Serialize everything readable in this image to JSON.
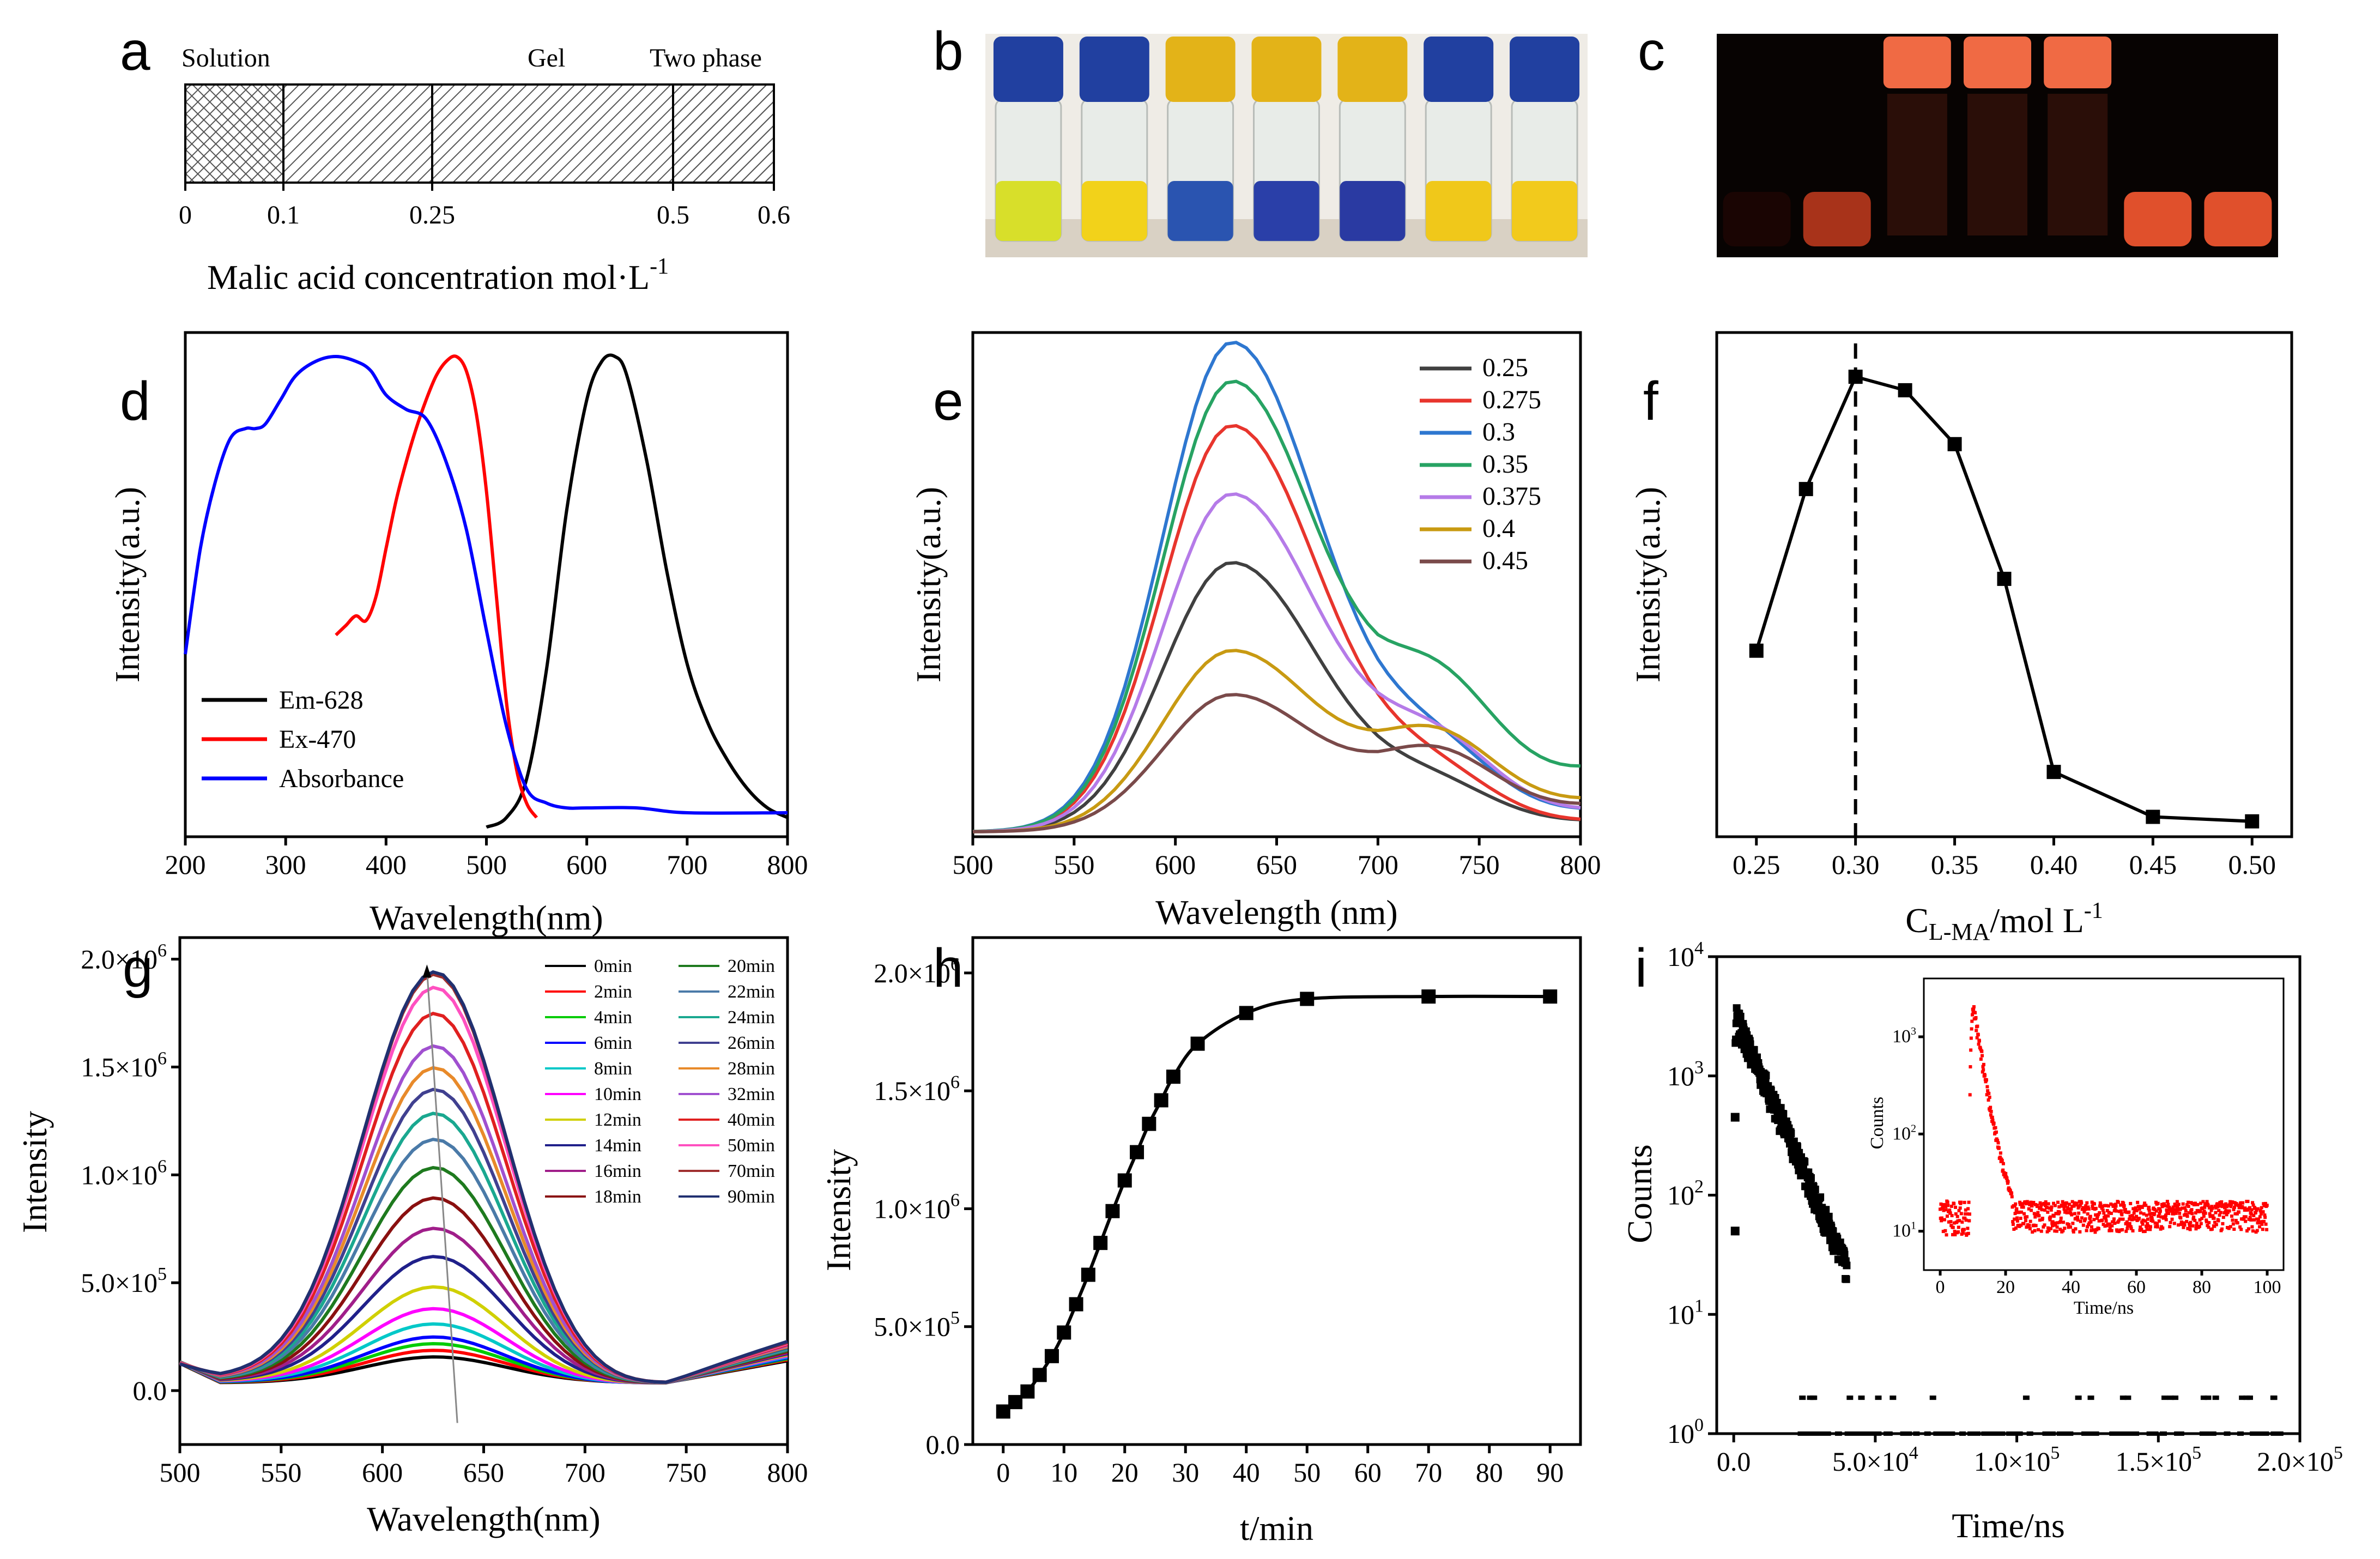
{
  "panel_labels": [
    "a",
    "b",
    "c",
    "d",
    "e",
    "f",
    "g",
    "h",
    "i"
  ],
  "panel_a": {
    "regions": [
      "Solution",
      "Gel",
      "Two phase"
    ],
    "ticks": [
      "0",
      "0.1",
      "0.25",
      "0.5",
      "0.6"
    ],
    "xlabel": "Malic acid concentration mol·L",
    "xlabel_sup": "-1"
  },
  "photo_b": {
    "vials": [
      {
        "cap": "#2140a0",
        "liquid": "#d8df2a"
      },
      {
        "cap": "#2140a0",
        "liquid": "#f2d21a"
      },
      {
        "cap": "#e3b318",
        "liquid": "#2a54b0"
      },
      {
        "cap": "#e3b318",
        "liquid": "#2a3fa8"
      },
      {
        "cap": "#e3b318",
        "liquid": "#2a3aa2"
      },
      {
        "cap": "#2140a0",
        "liquid": "#f0c81a"
      },
      {
        "cap": "#2140a0",
        "liquid": "#f2ca1c"
      }
    ]
  },
  "photo_c": {
    "glows": [
      "#1a0503",
      "#a8331a",
      "#f06a44",
      "#f06a44",
      "#f06a44",
      "#e0502c",
      "#e0502c"
    ]
  },
  "chart_data": [
    {
      "id": "d",
      "type": "line",
      "xlabel": "Wavelength(nm)",
      "ylabel": "Intensity(a.u.)",
      "xlim": [
        200,
        800
      ],
      "ylim": [
        0,
        1.05
      ],
      "xticks": [
        200,
        300,
        400,
        500,
        600,
        700,
        800
      ],
      "series": [
        {
          "name": "Em-628",
          "color": "#000000",
          "x": [
            500,
            520,
            540,
            560,
            580,
            600,
            615,
            628,
            640,
            660,
            680,
            700,
            720,
            740,
            760,
            780,
            800
          ],
          "y": [
            0.02,
            0.04,
            0.12,
            0.35,
            0.68,
            0.91,
            0.99,
            1.0,
            0.96,
            0.78,
            0.55,
            0.36,
            0.24,
            0.16,
            0.1,
            0.06,
            0.04
          ]
        },
        {
          "name": "Ex-470",
          "color": "#ff0000",
          "x": [
            350,
            360,
            370,
            380,
            390,
            400,
            410,
            420,
            430,
            440,
            450,
            460,
            470,
            480,
            490,
            500,
            510,
            520,
            530,
            540,
            550
          ],
          "y": [
            0.42,
            0.44,
            0.46,
            0.45,
            0.5,
            0.6,
            0.7,
            0.78,
            0.85,
            0.91,
            0.96,
            0.99,
            1.0,
            0.97,
            0.88,
            0.72,
            0.5,
            0.28,
            0.14,
            0.07,
            0.04
          ]
        },
        {
          "name": "Absorbance",
          "color": "#0000ff",
          "x": [
            200,
            215,
            230,
            245,
            260,
            270,
            280,
            295,
            310,
            330,
            350,
            370,
            385,
            400,
            420,
            440,
            460,
            480,
            500,
            520,
            540,
            560,
            580,
            600,
            650,
            700,
            800
          ],
          "y": [
            0.38,
            0.6,
            0.74,
            0.83,
            0.85,
            0.85,
            0.86,
            0.91,
            0.96,
            0.99,
            1.0,
            0.99,
            0.97,
            0.92,
            0.89,
            0.87,
            0.78,
            0.64,
            0.43,
            0.23,
            0.1,
            0.07,
            0.06,
            0.06,
            0.06,
            0.05,
            0.05
          ]
        }
      ]
    },
    {
      "id": "e",
      "type": "line",
      "xlabel": "Wavelength (nm)",
      "ylabel": "Intensity(a.u.)",
      "xlim": [
        500,
        800
      ],
      "ylim": [
        0,
        1.03
      ],
      "xticks": [
        500,
        550,
        600,
        650,
        700,
        750,
        800
      ],
      "series": [
        {
          "name": "0.25",
          "color": "#404040",
          "peak": 0.55,
          "shoulder": 0.08,
          "tail": 0.02
        },
        {
          "name": "0.275",
          "color": "#e8352d",
          "peak": 0.83,
          "shoulder": 0.1,
          "tail": 0.02
        },
        {
          "name": "0.3",
          "color": "#2e77d0",
          "peak": 1.0,
          "shoulder": 0.14,
          "tail": 0.04
        },
        {
          "name": "0.35",
          "color": "#27a363",
          "peak": 0.92,
          "shoulder": 0.25,
          "tail": 0.12
        },
        {
          "name": "0.375",
          "color": "#b57be8",
          "peak": 0.69,
          "shoulder": 0.16,
          "tail": 0.04
        },
        {
          "name": "0.4",
          "color": "#c89a12",
          "peak": 0.37,
          "shoulder": 0.17,
          "tail": 0.06
        },
        {
          "name": "0.45",
          "color": "#7a4a4a",
          "peak": 0.28,
          "shoulder": 0.14,
          "tail": 0.05
        }
      ]
    },
    {
      "id": "f",
      "type": "line",
      "xlabel": "C",
      "xlabel_sub": "L-MA",
      "xlabel_rest": "/mol L",
      "xlabel_sup": "-1",
      "ylabel": "Intensity(a.u.)",
      "xlim": [
        0.23,
        0.52
      ],
      "ylim": [
        0,
        1.05
      ],
      "xticks": [
        "0.25",
        "0.30",
        "0.35",
        "0.40",
        "0.45",
        "0.50"
      ],
      "x": [
        0.25,
        0.275,
        0.3,
        0.325,
        0.35,
        0.375,
        0.4,
        0.45,
        0.5
      ],
      "y": [
        0.39,
        0.75,
        1.0,
        0.97,
        0.85,
        0.55,
        0.12,
        0.02,
        0.01
      ],
      "vline": 0.3
    },
    {
      "id": "g",
      "type": "line",
      "xlabel": "Wavelength(nm)",
      "ylabel": "Intensity",
      "xlim": [
        500,
        800
      ],
      "ylim": [
        -250000,
        2100000
      ],
      "xticks": [
        500,
        550,
        600,
        650,
        700,
        750,
        800
      ],
      "yticks": [
        {
          "v": 0,
          "m": "0.0",
          "e": ""
        },
        {
          "v": 500000,
          "m": "5.0×10",
          "e": "5"
        },
        {
          "v": 1000000,
          "m": "1.0×10",
          "e": "6"
        },
        {
          "v": 1500000,
          "m": "1.5×10",
          "e": "6"
        },
        {
          "v": 2000000,
          "m": "2.0×10",
          "e": "6"
        }
      ],
      "series": [
        {
          "name": "0min",
          "color": "#000000",
          "peak": 120000
        },
        {
          "name": "2min",
          "color": "#ff0000",
          "peak": 150000
        },
        {
          "name": "4min",
          "color": "#00cc00",
          "peak": 180000
        },
        {
          "name": "6min",
          "color": "#0000ff",
          "peak": 210000
        },
        {
          "name": "8min",
          "color": "#00c8c8",
          "peak": 270000
        },
        {
          "name": "10min",
          "color": "#ff00ff",
          "peak": 340000
        },
        {
          "name": "12min",
          "color": "#d0d000",
          "peak": 440000
        },
        {
          "name": "14min",
          "color": "#20208a",
          "peak": 580000
        },
        {
          "name": "16min",
          "color": "#a01e8a",
          "peak": 710000
        },
        {
          "name": "18min",
          "color": "#8a1010",
          "peak": 850000
        },
        {
          "name": "20min",
          "color": "#1e7a1e",
          "peak": 990000
        },
        {
          "name": "22min",
          "color": "#4a7aa8",
          "peak": 1120000
        },
        {
          "name": "24min",
          "color": "#1aa890",
          "peak": 1240000
        },
        {
          "name": "26min",
          "color": "#404090",
          "peak": 1350000
        },
        {
          "name": "28min",
          "color": "#e88a2a",
          "peak": 1450000
        },
        {
          "name": "32min",
          "color": "#a050d0",
          "peak": 1550000
        },
        {
          "name": "40min",
          "color": "#e02020",
          "peak": 1700000
        },
        {
          "name": "50min",
          "color": "#ff50c0",
          "peak": 1820000
        },
        {
          "name": "70min",
          "color": "#a03030",
          "peak": 1880000
        },
        {
          "name": "90min",
          "color": "#203070",
          "peak": 1890000
        }
      ]
    },
    {
      "id": "h",
      "type": "line",
      "xlabel": "t/min",
      "ylabel": "Intensity",
      "xlim": [
        -5,
        95
      ],
      "ylim": [
        0,
        2150000
      ],
      "xticks": [
        0,
        10,
        20,
        30,
        40,
        50,
        60,
        70,
        80,
        90
      ],
      "yticks": [
        {
          "v": 0,
          "m": "0.0",
          "e": ""
        },
        {
          "v": 500000,
          "m": "5.0×10",
          "e": "5"
        },
        {
          "v": 1000000,
          "m": "1.0×10",
          "e": "6"
        },
        {
          "v": 1500000,
          "m": "1.5×10",
          "e": "6"
        },
        {
          "v": 2000000,
          "m": "2.0×10",
          "e": "6"
        }
      ],
      "x": [
        0,
        2,
        4,
        6,
        8,
        10,
        12,
        14,
        16,
        18,
        20,
        22,
        24,
        26,
        28,
        32,
        40,
        50,
        70,
        90
      ],
      "y": [
        140000,
        180000,
        225000,
        295000,
        375000,
        475000,
        595000,
        720000,
        855000,
        990000,
        1120000,
        1240000,
        1360000,
        1460000,
        1560000,
        1700000,
        1830000,
        1890000,
        1900000,
        1900000
      ]
    },
    {
      "id": "i",
      "type": "scatter",
      "xlabel": "Time/ns",
      "ylabel": "Counts",
      "xlim": [
        -6000,
        200000
      ],
      "ylim_log": [
        0,
        4
      ],
      "xticks": [
        {
          "v": 0,
          "m": "0.0",
          "e": ""
        },
        {
          "v": 50000,
          "m": "5.0×10",
          "e": "4"
        },
        {
          "v": 100000,
          "m": "1.0×10",
          "e": "5"
        },
        {
          "v": 150000,
          "m": "1.5×10",
          "e": "5"
        },
        {
          "v": 200000,
          "m": "2.0×10",
          "e": "5"
        }
      ],
      "yticks": [
        {
          "v": 0,
          "e": "0"
        },
        {
          "v": 1,
          "e": "1"
        },
        {
          "v": 2,
          "e": "2"
        },
        {
          "v": 3,
          "e": "3"
        },
        {
          "v": 4,
          "e": "4"
        }
      ],
      "decay": {
        "rise_ns": 1000,
        "peak_counts": 3000,
        "tau_ns": 5500,
        "noise_floor": 1,
        "color": "#000000"
      },
      "inset": {
        "xlabel": "Time/ns",
        "ylabel": "Counts",
        "xlim": [
          -5,
          105
        ],
        "ylim_log": [
          0.6,
          3.6
        ],
        "xticks": [
          0,
          20,
          40,
          60,
          80,
          100
        ],
        "yticks": [
          {
            "v": 1,
            "e": "1"
          },
          {
            "v": 2,
            "e": "2"
          },
          {
            "v": 3,
            "e": "3"
          }
        ],
        "color": "#ff0000",
        "baseline": 15,
        "peak_time": 10,
        "peak_counts": 2000,
        "tau": 2.2
      }
    }
  ]
}
